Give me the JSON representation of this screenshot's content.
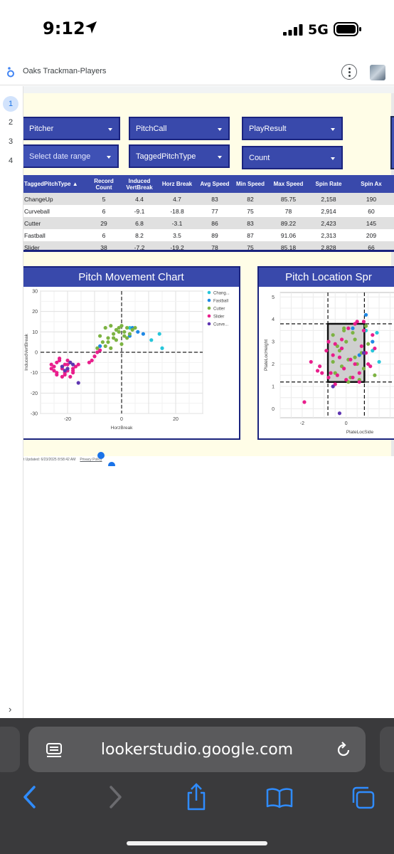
{
  "status_bar": {
    "time": "9:12",
    "network": "5G"
  },
  "report_header": {
    "title": "Oaks Trackman-Players"
  },
  "page_nav": {
    "pages": [
      "1",
      "2",
      "3",
      "4"
    ],
    "active": "1"
  },
  "controls": {
    "pitcher": "Pitcher",
    "pitch_call": "PitchCall",
    "play_result": "PlayResult",
    "date_range": "Select date range",
    "tagged_pitch_type": "TaggedPitchType",
    "count": "Count"
  },
  "table": {
    "headers": [
      "TaggedPitchType ▲",
      "Record Count",
      "Induced VertBreak",
      "Horz Break",
      "Avg Speed",
      "Min Speed",
      "Max Speed",
      "Spin Rate",
      "Spin Ax"
    ],
    "rows": [
      [
        "ChangeUp",
        "5",
        "4.4",
        "4.7",
        "83",
        "82",
        "85.75",
        "2,158",
        "190"
      ],
      [
        "Curveball",
        "6",
        "-9.1",
        "-18.8",
        "77",
        "75",
        "78",
        "2,914",
        "60"
      ],
      [
        "Cutter",
        "29",
        "6.8",
        "-3.1",
        "86",
        "83",
        "89.22",
        "2,423",
        "145"
      ],
      [
        "Fastball",
        "6",
        "8.2",
        "3.5",
        "89",
        "87",
        "91.06",
        "2,313",
        "209"
      ],
      [
        "Slider",
        "38",
        "-7.2",
        "-19.2",
        "78",
        "75",
        "85.18",
        "2,828",
        "66"
      ]
    ]
  },
  "chart_movement": {
    "title": "Pitch Movement Chart",
    "colors": {
      "ChangeUp": "#26c6da",
      "Fastball": "#1e88e5",
      "Cutter": "#7cb342",
      "Slider": "#e91e8c",
      "Curveball": "#5e35b1"
    },
    "chart_data": {
      "type": "scatter",
      "title": "Pitch Movement Chart",
      "xlabel": "HorzBreak",
      "ylabel": "InducedVertBreak",
      "xlim": [
        -30,
        30
      ],
      "ylim": [
        -30,
        30
      ],
      "xticks": [
        "-20",
        "0",
        "20"
      ],
      "yticks": [
        "30",
        "20",
        "10",
        "0",
        "-10",
        "-20",
        "-30"
      ],
      "grid": true,
      "legend": "right",
      "legend_labels": [
        "Chang...",
        "Fastball",
        "Cutter",
        "Slider",
        "Curve..."
      ],
      "series": [
        {
          "name": "ChangeUp",
          "x": [
            14,
            11,
            15,
            3
          ],
          "y": [
            9,
            6,
            2,
            12
          ]
        },
        {
          "name": "Fastball",
          "x": [
            6,
            3,
            4,
            -8,
            8
          ],
          "y": [
            10,
            8,
            12,
            3,
            9
          ]
        },
        {
          "name": "Cutter",
          "x": [
            -6,
            -4,
            -2,
            0,
            2,
            4,
            -8,
            -5,
            -3,
            -1,
            1,
            3,
            -7,
            -2,
            0,
            2,
            -6,
            -4,
            -9,
            -1,
            1,
            -3,
            5,
            -5
          ],
          "y": [
            12,
            13,
            11,
            13,
            12,
            11,
            8,
            7,
            9,
            10,
            8,
            9,
            5,
            6,
            4,
            7,
            3,
            2,
            2,
            12,
            10,
            7,
            12,
            5
          ]
        },
        {
          "name": "Slider",
          "x": [
            -26,
            -24,
            -22,
            -20,
            -18,
            -25,
            -23,
            -21,
            -19,
            -17,
            -26,
            -24,
            -22,
            -20,
            -18,
            -23,
            -21,
            -19,
            -25,
            -22,
            -20,
            -18,
            -16,
            -12,
            -10,
            -9,
            -8,
            -11,
            -24,
            -21
          ],
          "y": [
            -6,
            -5,
            -7,
            -6,
            -8,
            -9,
            -4,
            -10,
            -5,
            -7,
            -8,
            -11,
            -12,
            -9,
            -10,
            -3,
            -6,
            -12,
            -7,
            -8,
            -4,
            -9,
            -6,
            -5,
            -2,
            0,
            1,
            -4,
            -10,
            -11
          ]
        },
        {
          "name": "Curveball",
          "x": [
            -20,
            -18,
            -22,
            -19,
            -16,
            -21
          ],
          "y": [
            -8,
            -6,
            -7,
            -5,
            -15,
            -9
          ]
        }
      ]
    }
  },
  "chart_location": {
    "title": "Pitch Location Spr",
    "chart_data": {
      "type": "scatter",
      "title": "Pitch Location Spr",
      "xlabel": "PlateLocSide",
      "ylabel": "PlateLocHeight",
      "xlim": [
        -3,
        2.5
      ],
      "ylim": [
        -0.4,
        5.2
      ],
      "xticks": [
        "-2",
        "0"
      ],
      "yticks": [
        "5",
        "4",
        "3",
        "2",
        "1",
        "0"
      ],
      "grid": true,
      "strike_zone": {
        "x": [
          -0.83,
          0.83
        ],
        "y": [
          1.2,
          3.8
        ]
      },
      "series": [
        {
          "name": "ChangeUp",
          "x": [
            1.4,
            1.2,
            1.5,
            0.9
          ],
          "y": [
            3.4,
            2.6,
            2.1,
            3.5
          ]
        },
        {
          "name": "Fastball",
          "x": [
            0.9,
            0.3,
            1.2,
            0.6,
            -0.2
          ],
          "y": [
            4.2,
            3.6,
            3.0,
            2.4,
            2.7
          ]
        },
        {
          "name": "Cutter",
          "x": [
            -0.6,
            -0.4,
            -0.1,
            0.1,
            0.4,
            0.7,
            0.9,
            -0.5,
            -0.2,
            0.2,
            0.5,
            0.8,
            -0.3,
            0.0,
            0.3,
            0.6,
            1.0,
            -0.1,
            0.4,
            1.3,
            -0.6,
            0.1
          ],
          "y": [
            3.3,
            2.8,
            3.6,
            2.2,
            3.1,
            2.5,
            3.7,
            1.6,
            1.9,
            1.4,
            2.0,
            1.8,
            2.6,
            3.0,
            3.4,
            1.3,
            2.9,
            3.5,
            2.3,
            1.5,
            2.1,
            1.2
          ]
        },
        {
          "name": "Slider",
          "x": [
            -1.6,
            -1.3,
            -1.1,
            -0.8,
            -0.6,
            -0.4,
            -0.2,
            0.0,
            0.2,
            0.4,
            0.6,
            0.8,
            1.0,
            1.2,
            -0.9,
            -0.5,
            -0.1,
            0.3,
            0.7,
            1.1,
            -0.7,
            -0.3,
            0.5,
            0.9,
            -1.2,
            -0.2,
            0.6,
            -1.9,
            1.3,
            0.1,
            -0.8,
            0.4,
            -0.5,
            0.8
          ],
          "y": [
            2.1,
            1.7,
            1.6,
            3.0,
            2.4,
            1.5,
            2.7,
            1.3,
            2.2,
            3.8,
            1.6,
            3.5,
            2.0,
            3.3,
            2.6,
            2.9,
            1.8,
            1.4,
            2.8,
            1.9,
            1.6,
            2.3,
            3.9,
            2.5,
            1.9,
            3.1,
            1.2,
            0.3,
            2.7,
            3.6,
            1.4,
            2.0,
            1.1,
            3.9
          ]
        },
        {
          "name": "Curveball",
          "x": [
            -0.3,
            -0.6,
            0.8
          ],
          "y": [
            -0.2,
            1.0,
            2.5
          ]
        }
      ]
    }
  },
  "footer": {
    "updated": "t Updated: 6/23/2025 8:58:42 AM",
    "privacy": "Privacy Policy"
  },
  "safari": {
    "url": "lookerstudio.google.com"
  }
}
